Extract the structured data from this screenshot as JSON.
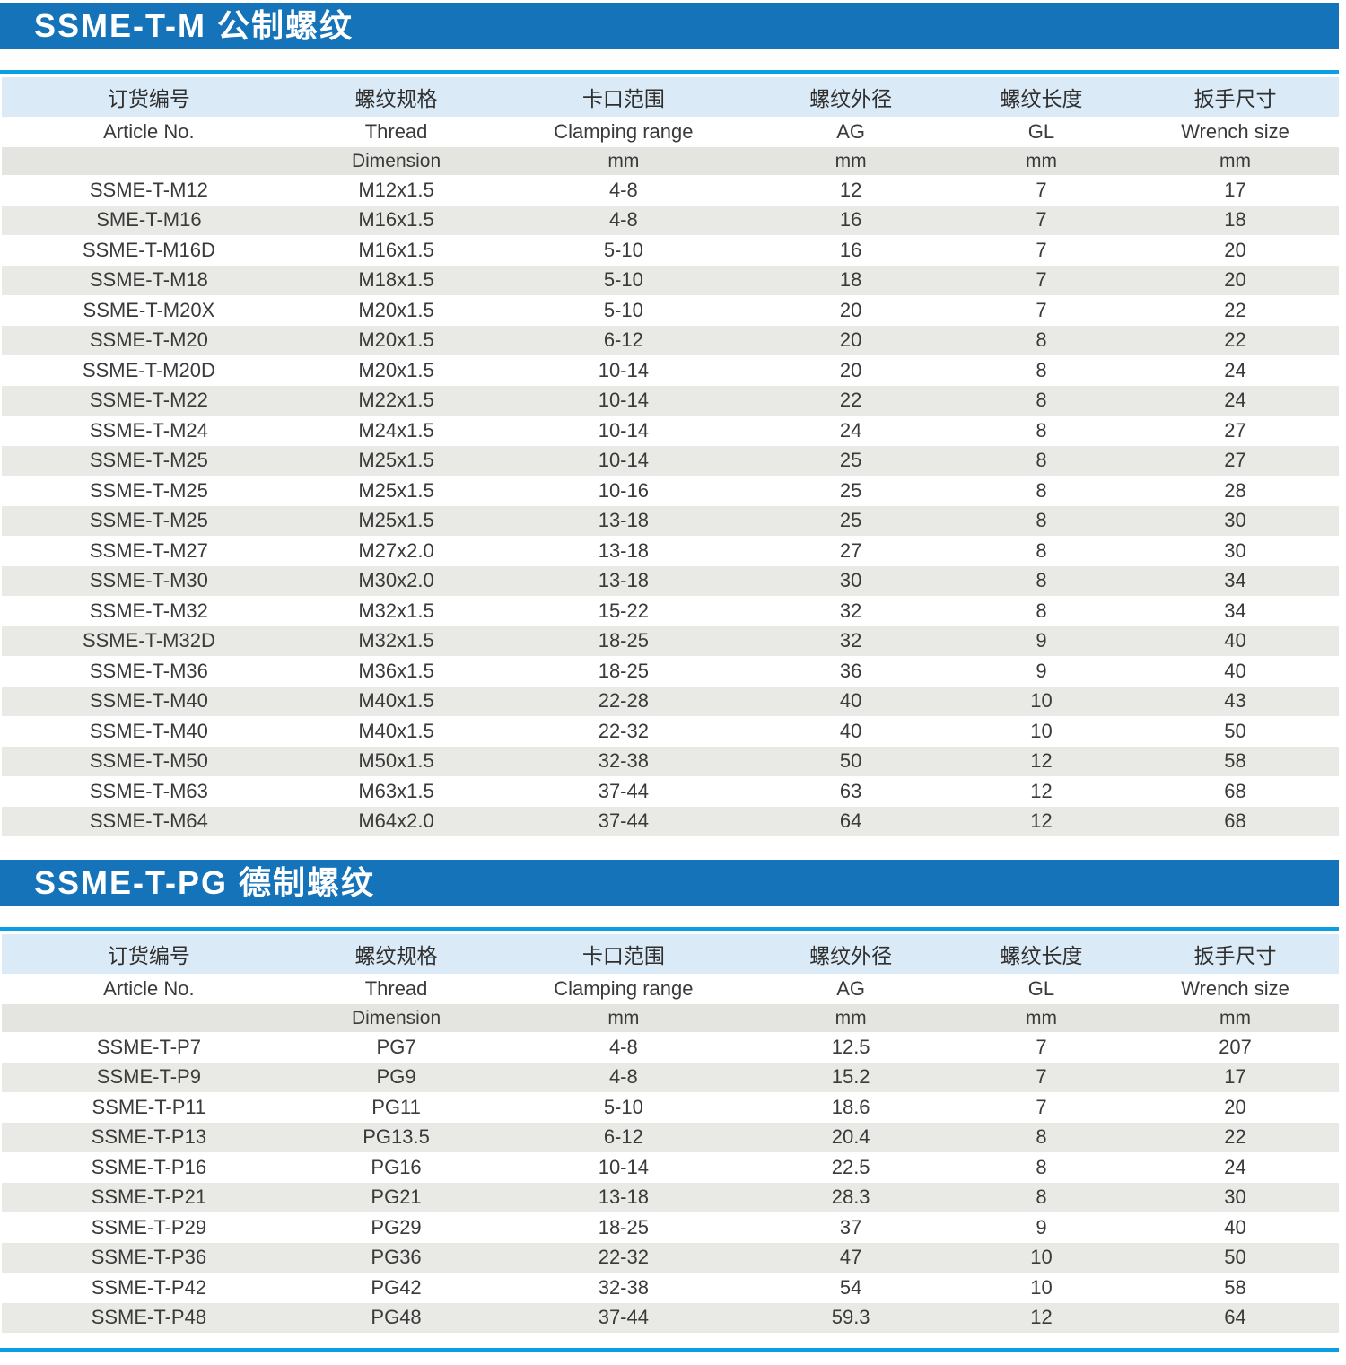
{
  "colors": {
    "section_bar_blue": "#1573b9",
    "thin_rule_blue": "#0a9ee2",
    "header_row_light_blue": "#daeaf6",
    "unit_row_gray": "#e4e4e0",
    "alt_row_gray": "#e9e9e5",
    "text_dark": "#3a3a3a",
    "title_text_white": "#ffffff"
  },
  "sections": [
    {
      "title": "SSME-T-M 公制螺纹",
      "table": {
        "headers_cn": [
          "订货编号",
          "螺纹规格",
          "卡口范围",
          "螺纹外径",
          "螺纹长度",
          "扳手尺寸"
        ],
        "headers_en": [
          "Article No.",
          "Thread",
          "Clamping range",
          "AG",
          "GL",
          "Wrench size"
        ],
        "units": [
          "",
          "Dimension",
          "mm",
          "mm",
          "mm",
          "mm"
        ],
        "rows": [
          [
            "SSME-T-M12",
            "M12x1.5",
            "4-8",
            "12",
            "7",
            "17"
          ],
          [
            "SME-T-M16",
            "M16x1.5",
            "4-8",
            "16",
            "7",
            "18"
          ],
          [
            "SSME-T-M16D",
            "M16x1.5",
            "5-10",
            "16",
            "7",
            "20"
          ],
          [
            "SSME-T-M18",
            "M18x1.5",
            "5-10",
            "18",
            "7",
            "20"
          ],
          [
            "SSME-T-M20X",
            "M20x1.5",
            "5-10",
            "20",
            "7",
            "22"
          ],
          [
            "SSME-T-M20",
            "M20x1.5",
            "6-12",
            "20",
            "8",
            "22"
          ],
          [
            "SSME-T-M20D",
            "M20x1.5",
            "10-14",
            "20",
            "8",
            "24"
          ],
          [
            "SSME-T-M22",
            "M22x1.5",
            "10-14",
            "22",
            "8",
            "24"
          ],
          [
            "SSME-T-M24",
            "M24x1.5",
            "10-14",
            "24",
            "8",
            "27"
          ],
          [
            "SSME-T-M25",
            "M25x1.5",
            "10-14",
            "25",
            "8",
            "27"
          ],
          [
            "SSME-T-M25",
            "M25x1.5",
            "10-16",
            "25",
            "8",
            "28"
          ],
          [
            "SSME-T-M25",
            "M25x1.5",
            "13-18",
            "25",
            "8",
            "30"
          ],
          [
            "SSME-T-M27",
            "M27x2.0",
            "13-18",
            "27",
            "8",
            "30"
          ],
          [
            "SSME-T-M30",
            "M30x2.0",
            "13-18",
            "30",
            "8",
            "34"
          ],
          [
            "SSME-T-M32",
            "M32x1.5",
            "15-22",
            "32",
            "8",
            "34"
          ],
          [
            "SSME-T-M32D",
            "M32x1.5",
            "18-25",
            "32",
            "9",
            "40"
          ],
          [
            "SSME-T-M36",
            "M36x1.5",
            "18-25",
            "36",
            "9",
            "40"
          ],
          [
            "SSME-T-M40",
            "M40x1.5",
            "22-28",
            "40",
            "10",
            "43"
          ],
          [
            "SSME-T-M40",
            "M40x1.5",
            "22-32",
            "40",
            "10",
            "50"
          ],
          [
            "SSME-T-M50",
            "M50x1.5",
            "32-38",
            "50",
            "12",
            "58"
          ],
          [
            "SSME-T-M63",
            "M63x1.5",
            "37-44",
            "63",
            "12",
            "68"
          ],
          [
            "SSME-T-M64",
            "M64x2.0",
            "37-44",
            "64",
            "12",
            "68"
          ]
        ]
      }
    },
    {
      "title": "SSME-T-PG 德制螺纹",
      "table": {
        "headers_cn": [
          "订货编号",
          "螺纹规格",
          "卡口范围",
          "螺纹外径",
          "螺纹长度",
          "扳手尺寸"
        ],
        "headers_en": [
          "Article No.",
          "Thread",
          "Clamping range",
          "AG",
          "GL",
          "Wrench size"
        ],
        "units": [
          "",
          "Dimension",
          "mm",
          "mm",
          "mm",
          "mm"
        ],
        "rows": [
          [
            "SSME-T-P7",
            "PG7",
            "4-8",
            "12.5",
            "7",
            "207"
          ],
          [
            "SSME-T-P9",
            "PG9",
            "4-8",
            "15.2",
            "7",
            "17"
          ],
          [
            "SSME-T-P11",
            "PG11",
            "5-10",
            "18.6",
            "7",
            "20"
          ],
          [
            "SSME-T-P13",
            "PG13.5",
            "6-12",
            "20.4",
            "8",
            "22"
          ],
          [
            "SSME-T-P16",
            "PG16",
            "10-14",
            "22.5",
            "8",
            "24"
          ],
          [
            "SSME-T-P21",
            "PG21",
            "13-18",
            "28.3",
            "8",
            "30"
          ],
          [
            "SSME-T-P29",
            "PG29",
            "18-25",
            "37",
            "9",
            "40"
          ],
          [
            "SSME-T-P36",
            "PG36",
            "22-32",
            "47",
            "10",
            "50"
          ],
          [
            "SSME-T-P42",
            "PG42",
            "32-38",
            "54",
            "10",
            "58"
          ],
          [
            "SSME-T-P48",
            "PG48",
            "37-44",
            "59.3",
            "12",
            "64"
          ]
        ]
      }
    }
  ]
}
